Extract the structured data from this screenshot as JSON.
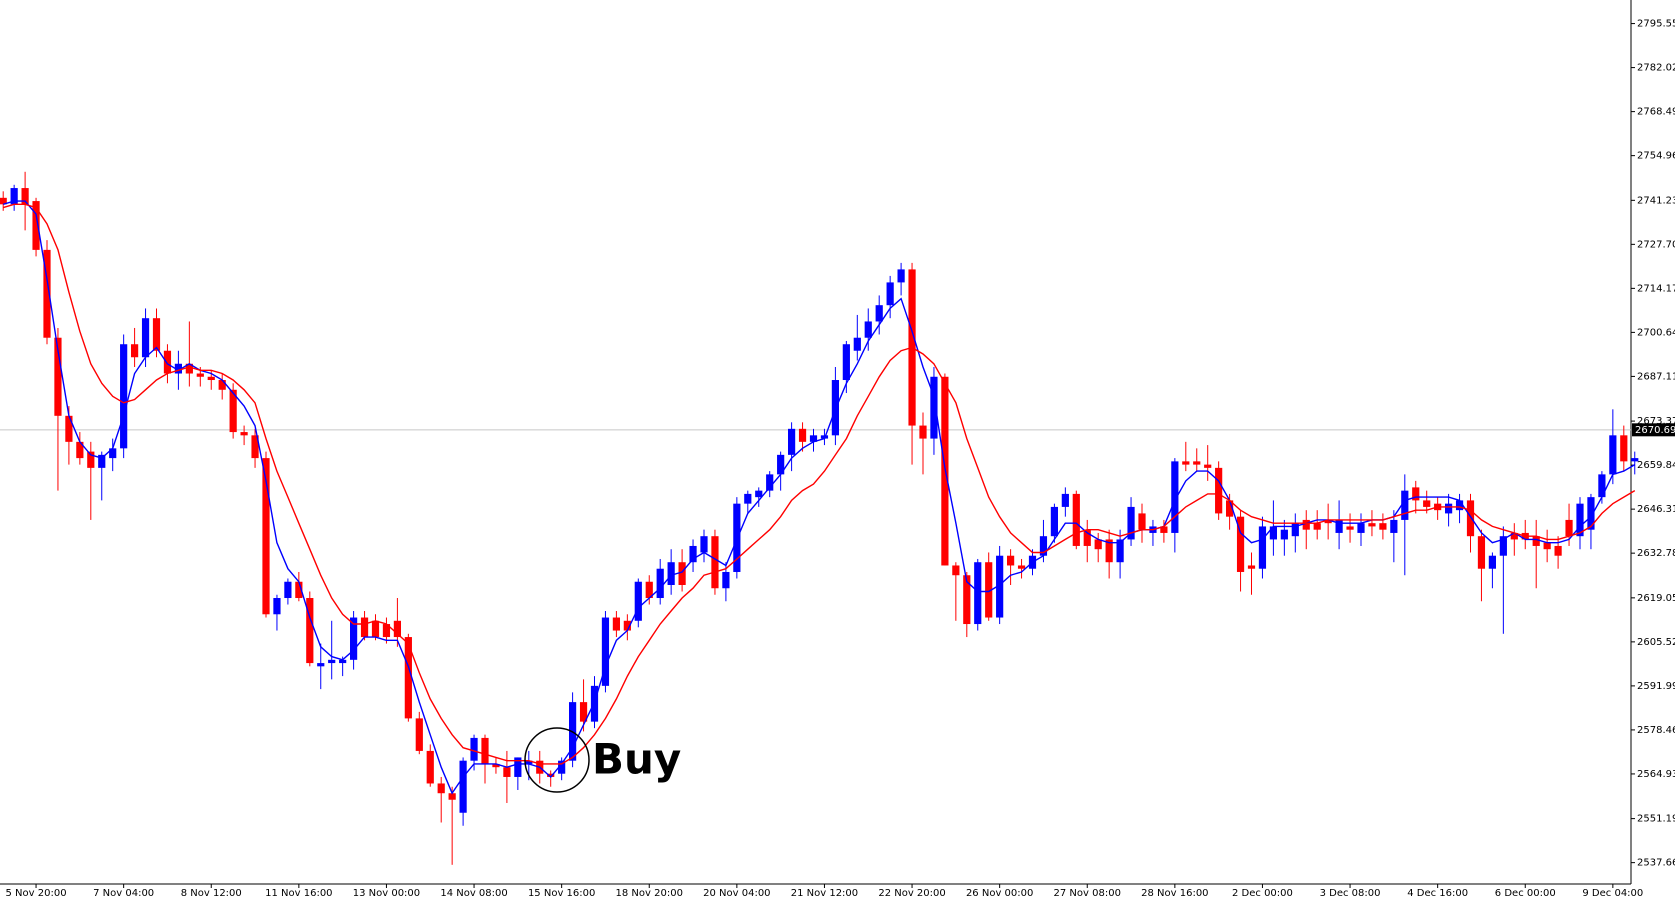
{
  "chart_data": {
    "type": "candlestick",
    "up_color": "#0000ff",
    "down_color": "#ff0000",
    "categories": [
      null,
      null,
      null,
      "5 Nov 20:00",
      null,
      null,
      null,
      null,
      null,
      null,
      null,
      "7 Nov 04:00",
      null,
      null,
      null,
      null,
      null,
      null,
      null,
      "8 Nov 12:00",
      null,
      null,
      null,
      null,
      null,
      null,
      null,
      "11 Nov 16:00",
      null,
      null,
      null,
      null,
      null,
      null,
      null,
      "13 Nov 00:00",
      null,
      null,
      null,
      null,
      null,
      null,
      null,
      "14 Nov 08:00",
      null,
      null,
      null,
      null,
      null,
      null,
      null,
      "15 Nov 16:00",
      null,
      null,
      null,
      null,
      null,
      null,
      null,
      "18 Nov 20:00",
      null,
      null,
      null,
      null,
      null,
      null,
      null,
      "20 Nov 04:00",
      null,
      null,
      null,
      null,
      null,
      null,
      null,
      "21 Nov 12:00",
      null,
      null,
      null,
      null,
      null,
      null,
      null,
      "22 Nov 20:00",
      null,
      null,
      null,
      null,
      null,
      null,
      null,
      "26 Nov 00:00",
      null,
      null,
      null,
      null,
      null,
      null,
      null,
      "27 Nov 08:00",
      null,
      null,
      null,
      null,
      null,
      null,
      null,
      "28 Nov 16:00",
      null,
      null,
      null,
      null,
      null,
      null,
      null,
      "2 Dec 00:00",
      null,
      null,
      null,
      null,
      null,
      null,
      null,
      "3 Dec 08:00",
      null,
      null,
      null,
      null,
      null,
      null,
      null,
      "4 Dec 16:00",
      null,
      null,
      null,
      null,
      null,
      null,
      null,
      "6 Dec 00:00",
      null,
      null,
      null,
      null,
      null,
      null,
      null,
      "9 Dec 04:00",
      null,
      null
    ],
    "ohlc": [
      [
        2742,
        2744,
        2738,
        2740
      ],
      [
        2740,
        2746,
        2738,
        2745
      ],
      [
        2745,
        2750,
        2732,
        2740
      ],
      [
        2741,
        2742,
        2724,
        2726
      ],
      [
        2726,
        2729,
        2697,
        2699
      ],
      [
        2699,
        2702,
        2652,
        2675
      ],
      [
        2675,
        2678,
        2660,
        2667
      ],
      [
        2667,
        2670,
        2660,
        2662
      ],
      [
        2664,
        2667,
        2643,
        2659
      ],
      [
        2659,
        2664,
        2649,
        2663
      ],
      [
        2662,
        2668,
        2658,
        2665
      ],
      [
        2665,
        2700,
        2662,
        2697
      ],
      [
        2697,
        2702,
        2690,
        2693
      ],
      [
        2693,
        2708,
        2690,
        2705
      ],
      [
        2705,
        2708,
        2693,
        2695
      ],
      [
        2695,
        2697,
        2685,
        2688
      ],
      [
        2688,
        2695,
        2683,
        2691
      ],
      [
        2691,
        2704,
        2684,
        2688
      ],
      [
        2688,
        2690,
        2684,
        2687
      ],
      [
        2687,
        2689,
        2683,
        2686
      ],
      [
        2686,
        2688,
        2680,
        2683
      ],
      [
        2683,
        2685,
        2668,
        2670
      ],
      [
        2670,
        2672,
        2666,
        2669
      ],
      [
        2669,
        2671,
        2659,
        2662
      ],
      [
        2662,
        2664,
        2613,
        2614
      ],
      [
        2614,
        2620,
        2609,
        2619
      ],
      [
        2619,
        2625,
        2617,
        2624
      ],
      [
        2624,
        2627,
        2618,
        2619
      ],
      [
        2619,
        2621,
        2598,
        2599
      ],
      [
        2598,
        2605,
        2591,
        2599
      ],
      [
        2599,
        2612,
        2594,
        2600
      ],
      [
        2599,
        2601,
        2595,
        2600
      ],
      [
        2600,
        2615,
        2597,
        2613
      ],
      [
        2613,
        2615,
        2606,
        2607
      ],
      [
        2612,
        2614,
        2606,
        2607
      ],
      [
        2611,
        2613,
        2605,
        2607
      ],
      [
        2612,
        2619,
        2604,
        2607
      ],
      [
        2607,
        2608,
        2581,
        2582
      ],
      [
        2582,
        2584,
        2571,
        2572
      ],
      [
        2572,
        2574,
        2561,
        2562
      ],
      [
        2562,
        2564,
        2550,
        2559
      ],
      [
        2559,
        2561,
        2537,
        2557
      ],
      [
        2553,
        2570,
        2549,
        2569
      ],
      [
        2569,
        2577,
        2566,
        2576
      ],
      [
        2576,
        2577,
        2562,
        2568
      ],
      [
        2568,
        2570,
        2565,
        2567
      ],
      [
        2567,
        2572,
        2556,
        2564
      ],
      [
        2564,
        2570,
        2560,
        2570
      ],
      [
        2568,
        2572,
        2563,
        2569
      ],
      [
        2569,
        2572,
        2562,
        2565
      ],
      [
        2565,
        2566,
        2561,
        2564
      ],
      [
        2565,
        2570,
        2563,
        2569
      ],
      [
        2569,
        2590,
        2567,
        2587
      ],
      [
        2587,
        2594,
        2578,
        2581
      ],
      [
        2581,
        2595,
        2579,
        2592
      ],
      [
        2592,
        2615,
        2590,
        2613
      ],
      [
        2613,
        2615,
        2607,
        2609
      ],
      [
        2612,
        2614,
        2606,
        2609
      ],
      [
        2612,
        2625,
        2610,
        2624
      ],
      [
        2624,
        2626,
        2617,
        2619
      ],
      [
        2619,
        2631,
        2617,
        2628
      ],
      [
        2623,
        2634,
        2620,
        2630
      ],
      [
        2630,
        2634,
        2621,
        2623
      ],
      [
        2630,
        2637,
        2627,
        2635
      ],
      [
        2633,
        2640,
        2630,
        2638
      ],
      [
        2638,
        2640,
        2620,
        2622
      ],
      [
        2622,
        2630,
        2618,
        2627
      ],
      [
        2627,
        2650,
        2625,
        2648
      ],
      [
        2648,
        2652,
        2645,
        2651
      ],
      [
        2650,
        2653,
        2647,
        2652
      ],
      [
        2652,
        2658,
        2650,
        2657
      ],
      [
        2657,
        2664,
        2652,
        2663
      ],
      [
        2663,
        2673,
        2658,
        2671
      ],
      [
        2671,
        2673,
        2664,
        2667
      ],
      [
        2667,
        2671,
        2664,
        2669
      ],
      [
        2668,
        2671,
        2666,
        2669
      ],
      [
        2669,
        2690,
        2666,
        2686
      ],
      [
        2686,
        2698,
        2682,
        2697
      ],
      [
        2695,
        2706,
        2692,
        2699
      ],
      [
        2699,
        2708,
        2695,
        2704
      ],
      [
        2704,
        2712,
        2700,
        2709
      ],
      [
        2709,
        2718,
        2705,
        2716
      ],
      [
        2716,
        2722,
        2712,
        2720
      ],
      [
        2720,
        2722,
        2660,
        2672
      ],
      [
        2672,
        2676,
        2657,
        2668
      ],
      [
        2668,
        2690,
        2663,
        2687
      ],
      [
        2687,
        2688,
        2629,
        2629
      ],
      [
        2629,
        2630,
        2612,
        2626
      ],
      [
        2626,
        2627,
        2607,
        2611
      ],
      [
        2611,
        2631,
        2609,
        2630
      ],
      [
        2630,
        2633,
        2612,
        2613
      ],
      [
        2613,
        2635,
        2611,
        2632
      ],
      [
        2632,
        2634,
        2623,
        2629
      ],
      [
        2629,
        2631,
        2625,
        2628
      ],
      [
        2628,
        2634,
        2626,
        2632
      ],
      [
        2632,
        2643,
        2630,
        2638
      ],
      [
        2638,
        2648,
        2636,
        2647
      ],
      [
        2647,
        2653,
        2644,
        2651
      ],
      [
        2651,
        2652,
        2634,
        2635
      ],
      [
        2640,
        2643,
        2630,
        2635
      ],
      [
        2637,
        2639,
        2630,
        2634
      ],
      [
        2637,
        2640,
        2625,
        2630
      ],
      [
        2630,
        2640,
        2625,
        2637
      ],
      [
        2637,
        2650,
        2635,
        2647
      ],
      [
        2645,
        2648,
        2636,
        2640
      ],
      [
        2639,
        2643,
        2635,
        2641
      ],
      [
        2641,
        2643,
        2636,
        2639
      ],
      [
        2639,
        2662,
        2633,
        2661
      ],
      [
        2661,
        2667,
        2658,
        2660
      ],
      [
        2661,
        2665,
        2658,
        2660
      ],
      [
        2660,
        2666,
        2655,
        2659
      ],
      [
        2659,
        2661,
        2643,
        2645
      ],
      [
        2649,
        2651,
        2640,
        2644
      ],
      [
        2644,
        2646,
        2621,
        2627
      ],
      [
        2629,
        2633,
        2620,
        2628
      ],
      [
        2628,
        2644,
        2625,
        2641
      ],
      [
        2637,
        2649,
        2632,
        2641
      ],
      [
        2637,
        2643,
        2632,
        2640
      ],
      [
        2638,
        2645,
        2633,
        2642
      ],
      [
        2643,
        2646,
        2634,
        2640
      ],
      [
        2642,
        2646,
        2637,
        2640
      ],
      [
        2643,
        2648,
        2637,
        2642
      ],
      [
        2639,
        2649,
        2634,
        2643
      ],
      [
        2641,
        2645,
        2636,
        2640
      ],
      [
        2639,
        2645,
        2635,
        2642
      ],
      [
        2642,
        2646,
        2638,
        2641
      ],
      [
        2642,
        2645,
        2637,
        2640
      ],
      [
        2639,
        2646,
        2630,
        2643
      ],
      [
        2643,
        2657,
        2626,
        2652
      ],
      [
        2653,
        2655,
        2645,
        2649
      ],
      [
        2649,
        2652,
        2645,
        2647
      ],
      [
        2648,
        2650,
        2643,
        2646
      ],
      [
        2645,
        2651,
        2641,
        2648
      ],
      [
        2646,
        2651,
        2642,
        2649
      ],
      [
        2649,
        2651,
        2633,
        2638
      ],
      [
        2638,
        2640,
        2618,
        2628
      ],
      [
        2628,
        2633,
        2622,
        2632
      ],
      [
        2632,
        2641,
        2608,
        2638
      ],
      [
        2639,
        2642,
        2632,
        2637
      ],
      [
        2639,
        2643,
        2634,
        2637
      ],
      [
        2638,
        2643,
        2622,
        2635
      ],
      [
        2636,
        2640,
        2630,
        2634
      ],
      [
        2635,
        2638,
        2628,
        2632
      ],
      [
        2643,
        2648,
        2635,
        2638
      ],
      [
        2638,
        2650,
        2634,
        2648
      ],
      [
        2640,
        2651,
        2634,
        2650
      ],
      [
        2650,
        2658,
        2648,
        2657
      ],
      [
        2657,
        2677,
        2654,
        2669
      ],
      [
        2669,
        2672,
        2658,
        2661
      ],
      [
        2661,
        2664,
        2657,
        2662
      ]
    ],
    "series": [
      {
        "color": "#0000ff",
        "values": [
          2740,
          2741,
          2741,
          2737,
          2717,
          2695,
          2675,
          2667,
          2663,
          2662,
          2665,
          2675,
          2688,
          2693,
          2696,
          2691,
          2689,
          2691,
          2689,
          2688,
          2686,
          2682,
          2678,
          2672,
          2655,
          2636,
          2628,
          2624,
          2613,
          2604,
          2601,
          2600,
          2603,
          2607,
          2607,
          2606,
          2606,
          2598,
          2587,
          2577,
          2567,
          2559,
          2564,
          2568,
          2568,
          2568,
          2567,
          2568,
          2568,
          2567,
          2564,
          2568,
          2573,
          2580,
          2587,
          2598,
          2606,
          2609,
          2616,
          2619,
          2622,
          2626,
          2627,
          2631,
          2633,
          2631,
          2629,
          2637,
          2645,
          2649,
          2653,
          2657,
          2662,
          2665,
          2667,
          2668,
          2677,
          2685,
          2691,
          2698,
          2703,
          2708,
          2711,
          2701,
          2690,
          2681,
          2659,
          2642,
          2624,
          2621,
          2621,
          2623,
          2626,
          2627,
          2630,
          2632,
          2637,
          2642,
          2642,
          2639,
          2637,
          2636,
          2636,
          2639,
          2640,
          2640,
          2641,
          2649,
          2655,
          2658,
          2658,
          2655,
          2649,
          2639,
          2636,
          2637,
          2641,
          2641,
          2641,
          2642,
          2643,
          2643,
          2642,
          2642,
          2642,
          2643,
          2643,
          2644,
          2649,
          2650,
          2650,
          2650,
          2650,
          2649,
          2644,
          2639,
          2636,
          2637,
          2639,
          2637,
          2637,
          2636,
          2636,
          2637,
          2641,
          2644,
          2650,
          2657,
          2658,
          2660
        ]
      },
      {
        "color": "#ff0000",
        "values": [
          2739,
          2740,
          2740,
          2739,
          2734,
          2726,
          2713,
          2701,
          2691,
          2685,
          2681,
          2679,
          2680,
          2683,
          2686,
          2688,
          2689,
          2690,
          2689,
          2689,
          2688,
          2686,
          2683,
          2679,
          2668,
          2658,
          2650,
          2642,
          2634,
          2626,
          2619,
          2614,
          2611,
          2611,
          2612,
          2611,
          2608,
          2605,
          2596,
          2588,
          2582,
          2577,
          2573,
          2572,
          2571,
          2570,
          2569,
          2569,
          2569,
          2568,
          2568,
          2568,
          2570,
          2573,
          2577,
          2582,
          2588,
          2595,
          2601,
          2606,
          2611,
          2615,
          2619,
          2622,
          2626,
          2627,
          2628,
          2631,
          2634,
          2637,
          2640,
          2644,
          2649,
          2652,
          2654,
          2658,
          2663,
          2668,
          2675,
          2681,
          2687,
          2692,
          2695,
          2696,
          2694,
          2691,
          2685,
          2679,
          2668,
          2659,
          2650,
          2644,
          2639,
          2636,
          2633,
          2633,
          2635,
          2637,
          2639,
          2640,
          2640,
          2639,
          2638,
          2639,
          2640,
          2640,
          2641,
          2644,
          2647,
          2649,
          2651,
          2651,
          2649,
          2646,
          2644,
          2643,
          2642,
          2642,
          2642,
          2642,
          2642,
          2643,
          2643,
          2643,
          2643,
          2643,
          2643,
          2644,
          2645,
          2646,
          2646,
          2647,
          2647,
          2647,
          2646,
          2643,
          2641,
          2640,
          2639,
          2638,
          2638,
          2637,
          2637,
          2638,
          2639,
          2641,
          2645,
          2648,
          2650,
          2652
        ]
      }
    ],
    "ylim": [
      2531.1,
      2802.8
    ],
    "yticks": [
      2795.555,
      2782.025,
      2768.495,
      2754.965,
      {
        "value": 2741.23,
        "label": "2741.230"
      },
      {
        "value": 2727.7,
        "label": "2727.700"
      },
      {
        "value": 2714.17,
        "label": "2714.170"
      },
      {
        "value": 2700.64,
        "label": "2700.640"
      },
      {
        "value": 2687.11,
        "label": "2687.110"
      },
      2673.375,
      2659.845,
      2646.315,
      2632.785,
      {
        "value": 2619.05,
        "label": "2619.050"
      },
      {
        "value": 2605.52,
        "label": "2605.520"
      },
      2591.99,
      {
        "value": 2578.46,
        "label": "2578.460"
      },
      {
        "value": 2564.93,
        "label": "2564.930"
      },
      2551.195,
      2537.665
    ],
    "current_price": 2670.694,
    "annotation": "Buy"
  }
}
